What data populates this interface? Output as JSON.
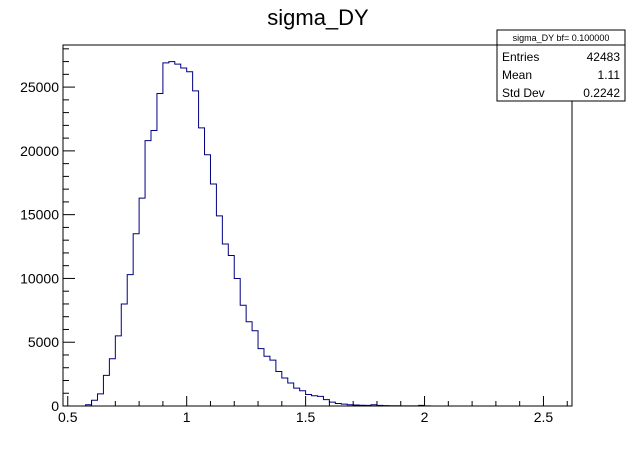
{
  "chart_data": {
    "type": "bar",
    "title": "sigma_DY",
    "xlabel": "",
    "ylabel": "",
    "xlim": [
      0.48,
      2.62
    ],
    "ylim": [
      0,
      28300
    ],
    "x_ticks": [
      {
        "value": 0.5,
        "label": "0.5"
      },
      {
        "value": 1.0,
        "label": "1"
      },
      {
        "value": 1.5,
        "label": "1.5"
      },
      {
        "value": 2.0,
        "label": "2"
      },
      {
        "value": 2.5,
        "label": "2.5"
      }
    ],
    "y_ticks": [
      {
        "value": 0,
        "label": "0"
      },
      {
        "value": 5000,
        "label": "5000"
      },
      {
        "value": 10000,
        "label": "10000"
      },
      {
        "value": 15000,
        "label": "15000"
      },
      {
        "value": 20000,
        "label": "20000"
      },
      {
        "value": 25000,
        "label": "25000"
      }
    ],
    "bin_start": 0.5,
    "bin_width": 0.025,
    "values": [
      0,
      0,
      0,
      100,
      450,
      950,
      2400,
      3700,
      5500,
      8000,
      10300,
      13500,
      16300,
      20800,
      21600,
      24500,
      26900,
      27000,
      26800,
      26500,
      26200,
      24700,
      21800,
      19700,
      17400,
      14900,
      12700,
      11800,
      10000,
      7900,
      6600,
      5900,
      4500,
      3900,
      3600,
      2700,
      2200,
      1800,
      1400,
      1200,
      900,
      800,
      750,
      500,
      300,
      200,
      150,
      100,
      80,
      60,
      50,
      100,
      50,
      30,
      20,
      20,
      10,
      10,
      10,
      50,
      10,
      0,
      0,
      0,
      0,
      0,
      0,
      0,
      0,
      0,
      0,
      0,
      0,
      0,
      0,
      0,
      0,
      0,
      0,
      0,
      0,
      0,
      0,
      0
    ],
    "line_color": "#000080",
    "grid": false,
    "legend": "none",
    "stats_box": {
      "title": "sigma_DY bf= 0.100000",
      "rows": [
        {
          "label": "Entries",
          "value": "42483"
        },
        {
          "label": "Mean",
          "value": "1.11"
        },
        {
          "label": "Std Dev",
          "value": "0.2242"
        }
      ],
      "placement": "top-right"
    }
  }
}
